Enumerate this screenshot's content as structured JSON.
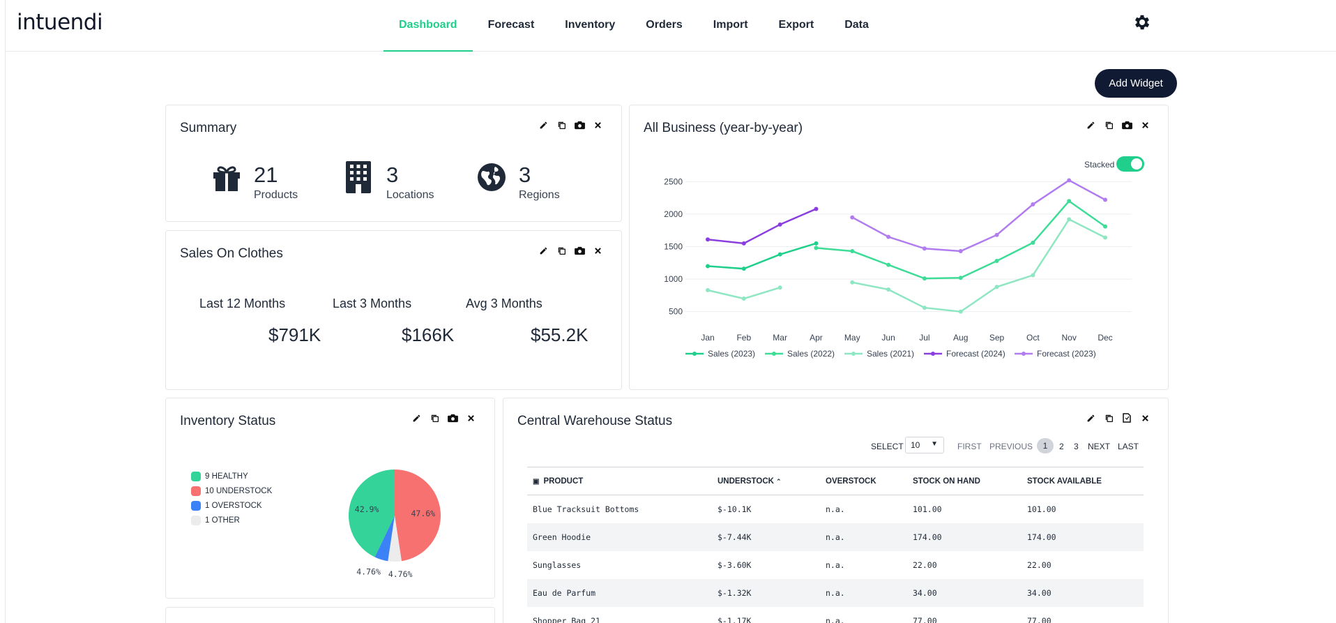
{
  "app": {
    "logo": "intuendi"
  },
  "nav": [
    {
      "label": "Dashboard",
      "active": true
    },
    {
      "label": "Forecast"
    },
    {
      "label": "Inventory"
    },
    {
      "label": "Orders"
    },
    {
      "label": "Import"
    },
    {
      "label": "Export"
    },
    {
      "label": "Data"
    }
  ],
  "toolbar": {
    "add_widget": "Add Widget"
  },
  "summary": {
    "title": "Summary",
    "stats": [
      {
        "value": "21",
        "label": "Products",
        "icon": "gift-icon"
      },
      {
        "value": "3",
        "label": "Locations",
        "icon": "building-icon"
      },
      {
        "value": "3",
        "label": "Regions",
        "icon": "globe-icon"
      }
    ]
  },
  "sales": {
    "title": "Sales On Clothes",
    "items": [
      {
        "label": "Last 12 Months",
        "value": "$791K"
      },
      {
        "label": "Last 3 Months",
        "value": "$166K"
      },
      {
        "label": "Avg 3 Months",
        "value": "$55.2K"
      }
    ]
  },
  "business": {
    "title": "All Business (year-by-year)",
    "stacked_label": "Stacked",
    "stacked": true
  },
  "chart_data": {
    "type": "line",
    "categories": [
      "Jan",
      "Feb",
      "Mar",
      "Apr",
      "May",
      "Jun",
      "Jul",
      "Aug",
      "Sep",
      "Oct",
      "Nov",
      "Dec"
    ],
    "ylim": [
      400,
      2600
    ],
    "yticks": [
      500,
      1000,
      1500,
      2000,
      2500
    ],
    "grid": true,
    "legend": "bottom",
    "series": [
      {
        "name": "Sales (2023)",
        "color": "#1fcf8b",
        "values": [
          1200,
          1160,
          1380,
          1550,
          null,
          null,
          null,
          null,
          null,
          null,
          null,
          null
        ]
      },
      {
        "name": "Sales (2022)",
        "color": "#3ddc97",
        "values": [
          null,
          null,
          null,
          1480,
          1430,
          1220,
          1010,
          1020,
          1280,
          1560,
          2200,
          1810
        ]
      },
      {
        "name": "Sales (2021)",
        "color": "#8ee6c2",
        "values": [
          830,
          700,
          870,
          null,
          950,
          840,
          560,
          500,
          880,
          1060,
          1920,
          1640
        ]
      },
      {
        "name": "Forecast (2024)",
        "color": "#8b3ee0",
        "values": [
          1610,
          1550,
          1840,
          2080,
          null,
          null,
          null,
          null,
          null,
          null,
          null,
          null
        ]
      },
      {
        "name": "Forecast (2023)",
        "color": "#b07cf0",
        "values": [
          null,
          null,
          null,
          null,
          1950,
          1650,
          1470,
          1430,
          1680,
          2150,
          2520,
          2220
        ]
      }
    ]
  },
  "inventory": {
    "title": "Inventory Status",
    "legend": [
      {
        "label": "9 HEALTHY",
        "color": "#34d399"
      },
      {
        "label": "10 UNDERSTOCK",
        "color": "#f87171"
      },
      {
        "label": "1 OVERSTOCK",
        "color": "#3b82f6"
      },
      {
        "label": "1 OTHER",
        "color": "#e5e7eb"
      }
    ],
    "slices": [
      {
        "name": "UNDERSTOCK",
        "value": 47.6,
        "label": "47.6%",
        "color": "#f87171"
      },
      {
        "name": "OTHER",
        "value": 4.76,
        "label": "4.76%",
        "color": "#ececec"
      },
      {
        "name": "OVERSTOCK",
        "value": 4.76,
        "label": "4.76%",
        "color": "#3b82f6"
      },
      {
        "name": "HEALTHY",
        "value": 42.9,
        "label": "42.9%",
        "color": "#34d399"
      }
    ]
  },
  "warehouse": {
    "title": "Central Warehouse Status",
    "pager": {
      "select_label": "SELECT",
      "page_size": "10",
      "first": "FIRST",
      "previous": "PREVIOUS",
      "pages": [
        "1",
        "2",
        "3"
      ],
      "next": "NEXT",
      "last": "LAST"
    },
    "columns": [
      "PRODUCT",
      "UNDERSTOCK",
      "OVERSTOCK",
      "STOCK ON HAND",
      "STOCK AVAILABLE"
    ],
    "rows": [
      [
        "Blue Tracksuit Bottoms",
        "$-10.1K",
        "n.a.",
        "101.00",
        "101.00"
      ],
      [
        "Green Hoodie",
        "$-7.44K",
        "n.a.",
        "174.00",
        "174.00"
      ],
      [
        "Sunglasses",
        "$-3.60K",
        "n.a.",
        "22.00",
        "22.00"
      ],
      [
        "Eau de Parfum",
        "$-1.32K",
        "n.a.",
        "34.00",
        "34.00"
      ],
      [
        "Shopper Bag 21",
        "$-1.17K",
        "n.a.",
        "77.00",
        "77.00"
      ]
    ]
  }
}
